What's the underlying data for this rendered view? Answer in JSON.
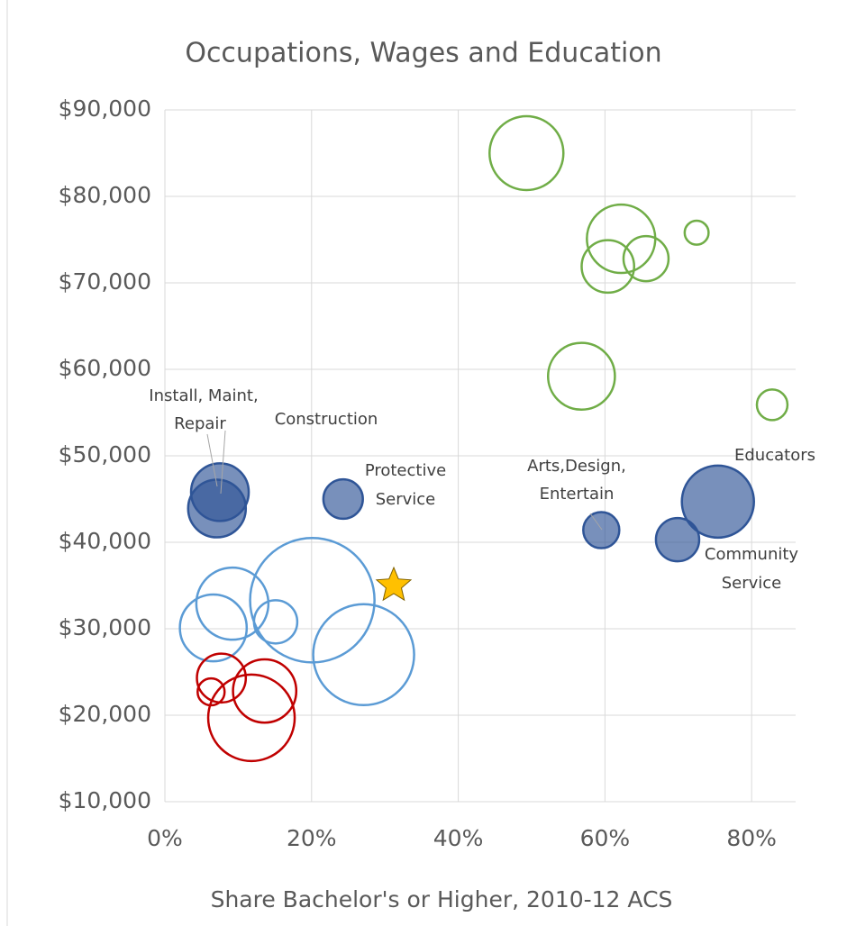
{
  "chart_data": {
    "type": "bubble",
    "title": "Occupations, Wages and Education",
    "x_label": "Share Bachelor's or Higher, 2010-12 ACS",
    "xlim": [
      0,
      86
    ],
    "ylim": [
      10000,
      90000
    ],
    "xticks": [
      {
        "value": 0,
        "label": "0%"
      },
      {
        "value": 20,
        "label": "20%"
      },
      {
        "value": 40,
        "label": "40%"
      },
      {
        "value": 60,
        "label": "60%"
      },
      {
        "value": 80,
        "label": "80%"
      }
    ],
    "yticks": [
      {
        "value": 10000,
        "label": "$10,000"
      },
      {
        "value": 20000,
        "label": "$20,000"
      },
      {
        "value": 30000,
        "label": "$30,000"
      },
      {
        "value": 40000,
        "label": "$40,000"
      },
      {
        "value": 50000,
        "label": "$50,000"
      },
      {
        "value": 60000,
        "label": "$60,000"
      },
      {
        "value": 70000,
        "label": "$70,000"
      },
      {
        "value": 80000,
        "label": "$80,000"
      },
      {
        "value": 90000,
        "label": "$90,000"
      }
    ],
    "grid": true,
    "series": [
      {
        "color": "#70ad47",
        "filled": false,
        "x": [
          49.3,
          62.2,
          60.4,
          65.6,
          72.5,
          56.8,
          82.8
        ],
        "values": [
          85000,
          75100,
          71900,
          72800,
          75800,
          59200,
          55900
        ],
        "sizes": [
          105,
          90,
          53,
          39,
          11,
          86,
          18
        ]
      },
      {
        "color": "#2f5597",
        "filled": true,
        "x": [
          7.5,
          7.1,
          24.3,
          59.5,
          69.9,
          75.4
        ],
        "values": [
          45800,
          43900,
          45000,
          41400,
          40300,
          44700
        ],
        "sizes": [
          64,
          64,
          30,
          25,
          36,
          100
        ]
      },
      {
        "color": "#5b9bd5",
        "filled": false,
        "x": [
          9.2,
          6.6,
          15.1,
          20.1,
          27.1
        ],
        "values": [
          32900,
          30100,
          30800,
          33300,
          27000
        ],
        "sizes": [
          100,
          86,
          36,
          298,
          196
        ]
      },
      {
        "color": "#c00000",
        "filled": false,
        "x": [
          7.7,
          6.3,
          13.6,
          11.8
        ],
        "values": [
          24300,
          22700,
          22800,
          19700
        ],
        "sizes": [
          46,
          14,
          77,
          144
        ]
      },
      {
        "color": "#ffc000",
        "marker": "star",
        "x": [
          31.2
        ],
        "values": [
          35000
        ]
      }
    ],
    "annotations": [
      {
        "lines": [
          "Install, Maint,",
          "Repair"
        ]
      },
      {
        "lines": [
          "Construction"
        ]
      },
      {
        "lines": [
          "Protective",
          "Service"
        ]
      },
      {
        "lines": [
          "Arts,Design,",
          "Entertain"
        ]
      },
      {
        "lines": [
          "Educators"
        ]
      },
      {
        "lines": [
          "Community",
          "Service"
        ]
      }
    ]
  }
}
